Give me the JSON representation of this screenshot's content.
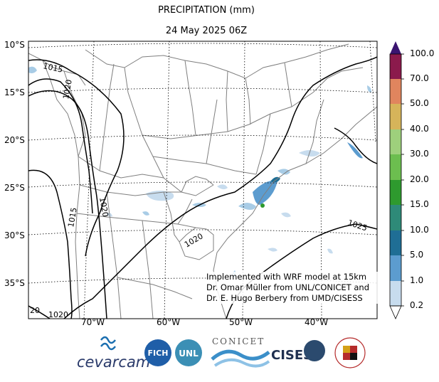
{
  "header": {
    "title": "PRECIPITATION (mm)",
    "valid_time": "24 May 2025 06Z"
  },
  "map": {
    "lat_labels": [
      "10°S",
      "15°S",
      "20°S",
      "25°S",
      "30°S",
      "35°S"
    ],
    "lon_labels": [
      "70°W",
      "60°W",
      "50°W",
      "40°W"
    ],
    "isobar_labels": [
      "1015",
      "1020",
      "1020",
      "1015",
      "1020",
      "1025",
      "20",
      "1020"
    ],
    "credit_lines": [
      "Implemented with WRF model at 15km",
      "Dr. Omar Müller from UNL/CONICET and",
      "Dr. E. Hugo Berbery from UMD/CISESS"
    ]
  },
  "colorbar": {
    "labels": [
      "100.0",
      "70.0",
      "50.0",
      "40.0",
      "30.0",
      "20.0",
      "15.0",
      "10.0",
      "5.0",
      "1.0",
      "0.2"
    ],
    "colors": [
      "#8b0a3c",
      "#9a1d5e",
      "#e0855e",
      "#d6b45a",
      "#9ed07c",
      "#6cbe4f",
      "#2e9a2e",
      "#2e8a78",
      "#1f6e95",
      "#5c9ccf",
      "#c7dcee"
    ],
    "extend_top_color": "#3a1470"
  },
  "logos": {
    "cevarcam": "cevarcam",
    "fich": "FICH",
    "unl": "UNL",
    "conicet": "CONICET",
    "cisess": "CISESS",
    "maryland_ring": "UNIVERSITY OF MARYLAND"
  }
}
